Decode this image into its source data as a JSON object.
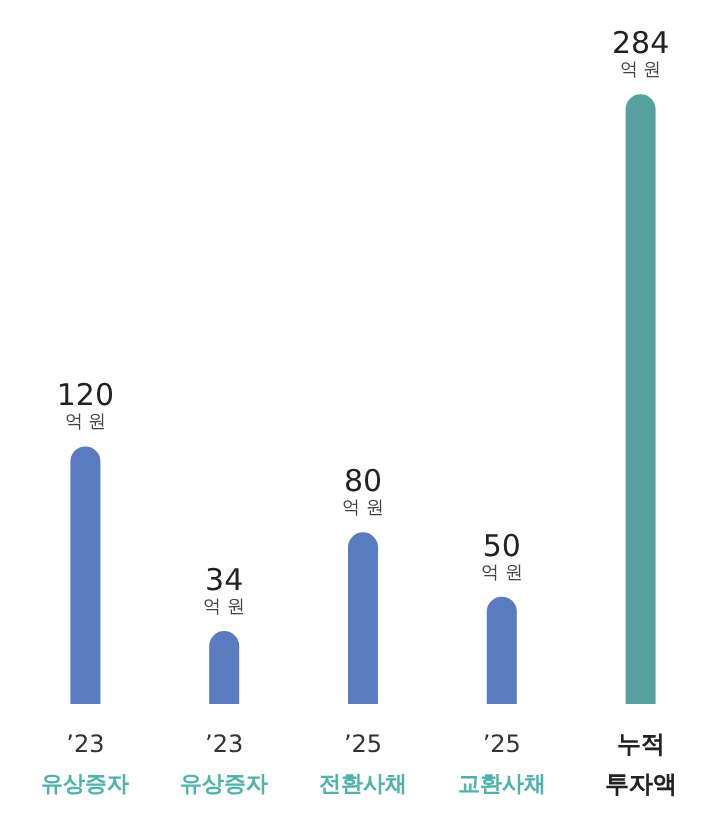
{
  "chart_data": {
    "type": "bar",
    "categories": [
      "’23\n유상증자",
      "’23\n유상증자",
      "’25\n전환사채",
      "’25\n교환사채",
      "누적\n투자액"
    ],
    "values": [
      120,
      34,
      80,
      50,
      284
    ],
    "colors": [
      "#5a7bc0",
      "#5a7bc0",
      "#5a7bc0",
      "#5a7bc0",
      "#57a29f"
    ],
    "value_labels": [
      "120\n억 원",
      "34\n억 원",
      "80\n억 원",
      "50\n억 원",
      "284\n억 원"
    ]
  }
}
